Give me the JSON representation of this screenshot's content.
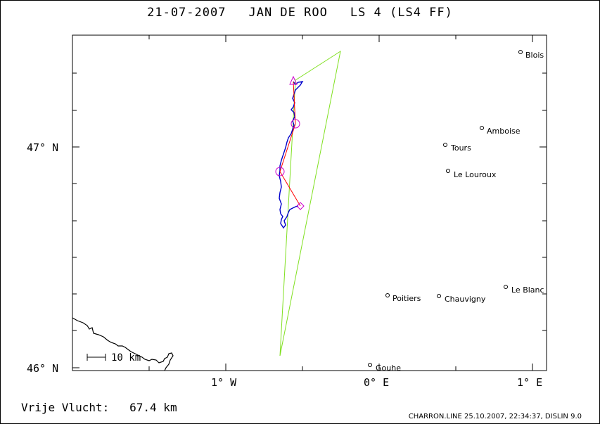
{
  "header": {
    "date": "21-07-2007",
    "pilot": "JAN DE ROO",
    "glider": "LS 4 (LS4 FF)"
  },
  "axes": {
    "lat_labels": [
      "47° N",
      "46° N"
    ],
    "lon_labels": [
      "1° W",
      "0° E",
      "1° E"
    ]
  },
  "places": [
    {
      "name": "Blois"
    },
    {
      "name": "Amboise"
    },
    {
      "name": "Tours"
    },
    {
      "name": "Le Louroux"
    },
    {
      "name": "Le Blanc"
    },
    {
      "name": "Poitiers"
    },
    {
      "name": "Chauvigny"
    },
    {
      "name": "Gouhe"
    }
  ],
  "scale_bar": {
    "label": "10 km"
  },
  "result": {
    "label": "Vrije Vlucht:",
    "distance": "67.4 km"
  },
  "footer": {
    "info": "CHARRON.LINE 25.10.2007, 22:34:37, DISLIN 9.0"
  },
  "colors": {
    "track": "#0000cc",
    "task_polygon": "#80e020",
    "task_legs": "#ff0000",
    "turnpoints": "#cc00cc",
    "coast": "#000000"
  },
  "icons": [
    "start-triangle-icon",
    "turnpoint-circle-icon",
    "finish-diamond-icon",
    "town-circle-icon"
  ]
}
